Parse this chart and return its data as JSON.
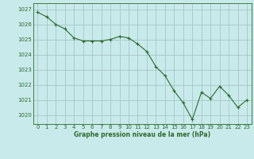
{
  "x": [
    0,
    1,
    2,
    3,
    4,
    5,
    6,
    7,
    8,
    9,
    10,
    11,
    12,
    13,
    14,
    15,
    16,
    17,
    18,
    19,
    20,
    21,
    22,
    23
  ],
  "y": [
    1026.8,
    1026.5,
    1026.0,
    1025.7,
    1025.1,
    1024.9,
    1024.9,
    1024.9,
    1025.0,
    1025.2,
    1025.1,
    1024.7,
    1024.2,
    1023.2,
    1022.6,
    1021.6,
    1020.8,
    1019.7,
    1021.5,
    1021.1,
    1021.9,
    1021.3,
    1020.5,
    1021.0
  ],
  "line_color": "#2d6a2d",
  "marker": "+",
  "bg_color": "#c8eaea",
  "grid_color": "#a0c0c0",
  "xlabel": "Graphe pression niveau de la mer (hPa)",
  "xlabel_color": "#2d6a2d",
  "tick_color": "#2d6a2d",
  "ylim": [
    1019.4,
    1027.4
  ],
  "xlim": [
    -0.5,
    23.5
  ],
  "yticks": [
    1020,
    1021,
    1022,
    1023,
    1024,
    1025,
    1026,
    1027
  ],
  "xticks": [
    0,
    1,
    2,
    3,
    4,
    5,
    6,
    7,
    8,
    9,
    10,
    11,
    12,
    13,
    14,
    15,
    16,
    17,
    18,
    19,
    20,
    21,
    22,
    23
  ]
}
